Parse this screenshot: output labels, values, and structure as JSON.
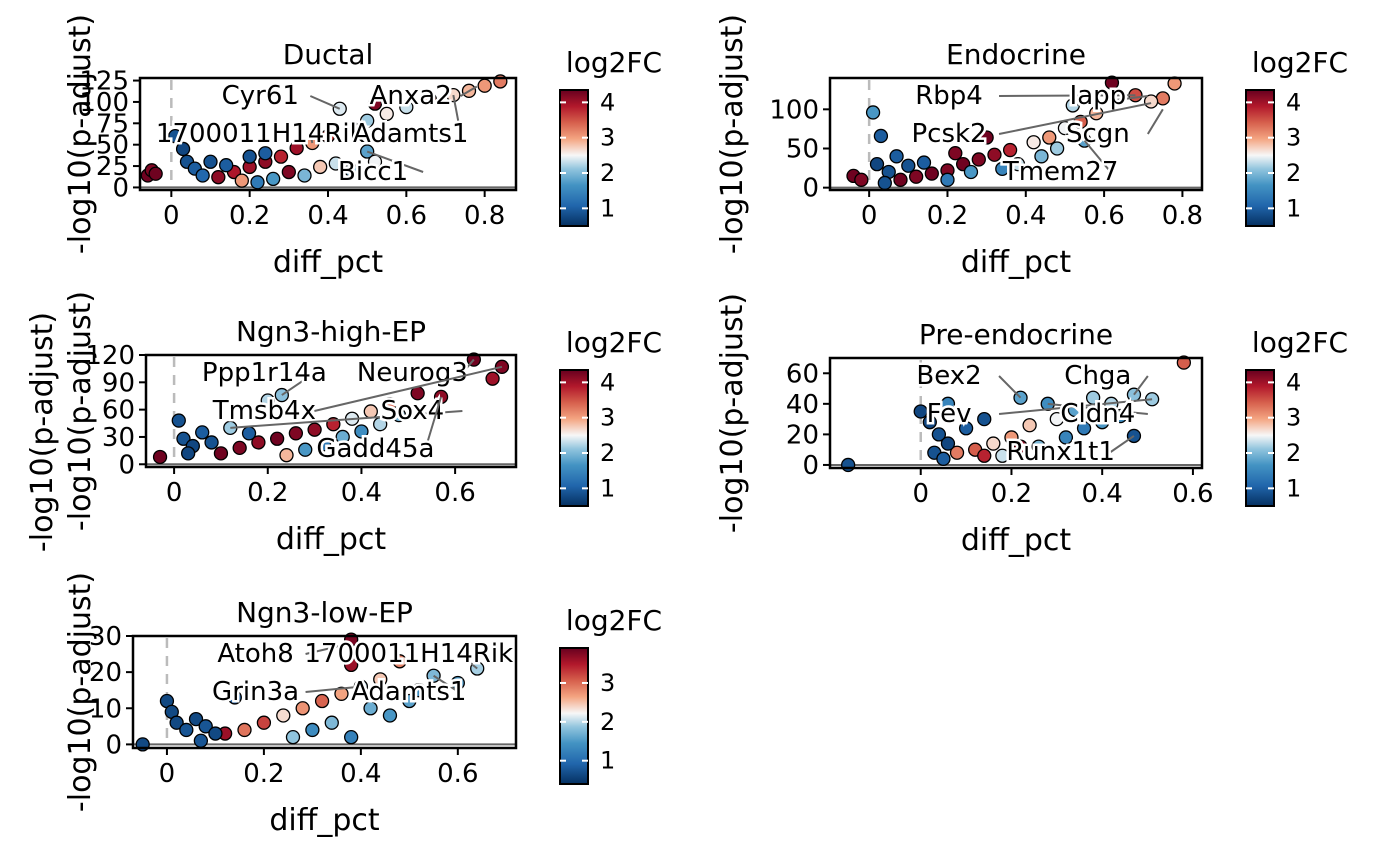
{
  "chart_data": [
    {
      "type": "scatter",
      "title": "Ductal",
      "xlabel": "diff_pct",
      "ylabel": "-log10(p-adjust)",
      "xlim": [
        -0.08,
        0.88
      ],
      "ylim": [
        -3,
        128
      ],
      "xticks": [
        0.0,
        0.2,
        0.4,
        0.6,
        0.8
      ],
      "yticks": [
        0,
        25,
        50,
        75,
        100,
        125
      ],
      "color_by": "log2FC",
      "legend": {
        "title": "log2FC",
        "min": 0.5,
        "max": 4.35,
        "ticks": [
          1,
          2,
          3,
          4
        ]
      },
      "labels": [
        {
          "text": "Cyr61",
          "x": 0.43,
          "y": 92
        },
        {
          "text": "Anxa2",
          "x": 0.78,
          "y": 118
        },
        {
          "text": "1700011H14Rik",
          "x": 0.36,
          "y": 52
        },
        {
          "text": "Adamts1",
          "x": 0.72,
          "y": 108
        },
        {
          "text": "Bicc1",
          "x": 0.5,
          "y": 42
        }
      ],
      "points": [
        {
          "x": 0.84,
          "y": 124,
          "fc": 3.2
        },
        {
          "x": 0.8,
          "y": 119,
          "fc": 3.0
        },
        {
          "x": 0.76,
          "y": 113,
          "fc": 2.8
        },
        {
          "x": 0.72,
          "y": 108,
          "fc": 2.6
        },
        {
          "x": 0.66,
          "y": 103,
          "fc": 3.4
        },
        {
          "x": 0.6,
          "y": 94,
          "fc": 2.2
        },
        {
          "x": 0.52,
          "y": 98,
          "fc": 4.2
        },
        {
          "x": 0.55,
          "y": 86,
          "fc": 2.5
        },
        {
          "x": 0.5,
          "y": 78,
          "fc": 2.0
        },
        {
          "x": 0.43,
          "y": 92,
          "fc": 2.3
        },
        {
          "x": 0.46,
          "y": 70,
          "fc": 2.9
        },
        {
          "x": 0.4,
          "y": 60,
          "fc": 3.6
        },
        {
          "x": 0.5,
          "y": 42,
          "fc": 1.6
        },
        {
          "x": 0.36,
          "y": 52,
          "fc": 3.0
        },
        {
          "x": 0.32,
          "y": 46,
          "fc": 4.0
        },
        {
          "x": 0.28,
          "y": 36,
          "fc": 3.8
        },
        {
          "x": 0.24,
          "y": 30,
          "fc": 4.1
        },
        {
          "x": 0.2,
          "y": 24,
          "fc": 4.0
        },
        {
          "x": 0.16,
          "y": 18,
          "fc": 3.9
        },
        {
          "x": 0.12,
          "y": 12,
          "fc": 4.1
        },
        {
          "x": 0.3,
          "y": 18,
          "fc": 4.2
        },
        {
          "x": 0.38,
          "y": 24,
          "fc": 2.7
        },
        {
          "x": 0.42,
          "y": 28,
          "fc": 2.2
        },
        {
          "x": 0.34,
          "y": 14,
          "fc": 1.8
        },
        {
          "x": 0.26,
          "y": 10,
          "fc": 1.5
        },
        {
          "x": 0.22,
          "y": 6,
          "fc": 1.2
        },
        {
          "x": 0.18,
          "y": 8,
          "fc": 3.0
        },
        {
          "x": 0.46,
          "y": 20,
          "fc": 1.9
        },
        {
          "x": 0.52,
          "y": 30,
          "fc": 2.4
        },
        {
          "x": 0.04,
          "y": 30,
          "fc": 0.8
        },
        {
          "x": 0.06,
          "y": 22,
          "fc": 0.9
        },
        {
          "x": 0.1,
          "y": 30,
          "fc": 0.8
        },
        {
          "x": 0.03,
          "y": 45,
          "fc": 0.7
        },
        {
          "x": 0.01,
          "y": 60,
          "fc": 0.8
        },
        {
          "x": 0.08,
          "y": 14,
          "fc": 1.0
        },
        {
          "x": -0.06,
          "y": 14,
          "fc": 4.3
        },
        {
          "x": -0.05,
          "y": 20,
          "fc": 4.2
        },
        {
          "x": -0.04,
          "y": 16,
          "fc": 4.3
        },
        {
          "x": 0.14,
          "y": 26,
          "fc": 0.9
        },
        {
          "x": 0.24,
          "y": 40,
          "fc": 0.9
        },
        {
          "x": 0.2,
          "y": 36,
          "fc": 0.8
        }
      ]
    },
    {
      "type": "scatter",
      "title": "Endocrine",
      "xlabel": "diff_pct",
      "ylabel": "-log10(p-adjust)",
      "xlim": [
        -0.1,
        0.85
      ],
      "ylim": [
        -3,
        140
      ],
      "xticks": [
        0.0,
        0.2,
        0.4,
        0.6,
        0.8
      ],
      "yticks": [
        0,
        50,
        100
      ],
      "color_by": "log2FC",
      "legend": {
        "title": "log2FC",
        "min": 0.5,
        "max": 4.35,
        "ticks": [
          1,
          2,
          3,
          4
        ]
      },
      "labels": [
        {
          "text": "Rbp4",
          "x": 0.68,
          "y": 118
        },
        {
          "text": "Iapp",
          "x": 0.52,
          "y": 105
        },
        {
          "text": "Pcsk2",
          "x": 0.72,
          "y": 108
        },
        {
          "text": "Scgn",
          "x": 0.75,
          "y": 100
        },
        {
          "text": "Tmem27",
          "x": 0.55,
          "y": 60
        }
      ],
      "points": [
        {
          "x": 0.78,
          "y": 133,
          "fc": 3.0
        },
        {
          "x": 0.75,
          "y": 114,
          "fc": 3.2
        },
        {
          "x": 0.72,
          "y": 110,
          "fc": 2.6
        },
        {
          "x": 0.68,
          "y": 118,
          "fc": 3.5
        },
        {
          "x": 0.62,
          "y": 134,
          "fc": 4.3
        },
        {
          "x": 0.52,
          "y": 105,
          "fc": 2.1
        },
        {
          "x": 0.58,
          "y": 95,
          "fc": 2.8
        },
        {
          "x": 0.54,
          "y": 84,
          "fc": 3.4
        },
        {
          "x": 0.5,
          "y": 76,
          "fc": 2.4
        },
        {
          "x": 0.55,
          "y": 60,
          "fc": 1.6
        },
        {
          "x": 0.46,
          "y": 64,
          "fc": 3.0
        },
        {
          "x": 0.42,
          "y": 58,
          "fc": 2.5
        },
        {
          "x": 0.36,
          "y": 48,
          "fc": 3.8
        },
        {
          "x": 0.32,
          "y": 42,
          "fc": 4.1
        },
        {
          "x": 0.28,
          "y": 36,
          "fc": 4.2
        },
        {
          "x": 0.24,
          "y": 30,
          "fc": 4.3
        },
        {
          "x": 0.2,
          "y": 22,
          "fc": 4.2
        },
        {
          "x": 0.16,
          "y": 18,
          "fc": 4.3
        },
        {
          "x": 0.12,
          "y": 14,
          "fc": 4.2
        },
        {
          "x": 0.08,
          "y": 10,
          "fc": 4.3
        },
        {
          "x": 0.3,
          "y": 64,
          "fc": 4.3
        },
        {
          "x": 0.38,
          "y": 30,
          "fc": 2.2
        },
        {
          "x": 0.44,
          "y": 40,
          "fc": 1.8
        },
        {
          "x": 0.26,
          "y": 20,
          "fc": 1.5
        },
        {
          "x": 0.34,
          "y": 24,
          "fc": 1.3
        },
        {
          "x": 0.2,
          "y": 10,
          "fc": 1.2
        },
        {
          "x": 0.48,
          "y": 50,
          "fc": 2.0
        },
        {
          "x": 0.01,
          "y": 96,
          "fc": 1.5
        },
        {
          "x": 0.03,
          "y": 66,
          "fc": 0.9
        },
        {
          "x": 0.02,
          "y": 30,
          "fc": 0.7
        },
        {
          "x": 0.05,
          "y": 20,
          "fc": 0.8
        },
        {
          "x": 0.1,
          "y": 28,
          "fc": 0.8
        },
        {
          "x": 0.07,
          "y": 40,
          "fc": 0.9
        },
        {
          "x": -0.04,
          "y": 15,
          "fc": 4.3
        },
        {
          "x": -0.02,
          "y": 10,
          "fc": 4.2
        },
        {
          "x": 0.04,
          "y": 6,
          "fc": 0.8
        },
        {
          "x": 0.14,
          "y": 32,
          "fc": 0.9
        },
        {
          "x": 0.22,
          "y": 44,
          "fc": 4.2
        }
      ]
    },
    {
      "type": "scatter",
      "title": "Ngn3-high-EP",
      "xlabel": "diff_pct",
      "ylabel": "-log10(p-adjust)",
      "xlim": [
        -0.06,
        0.73
      ],
      "ylim": [
        -3,
        120
      ],
      "xticks": [
        0.0,
        0.2,
        0.4,
        0.6
      ],
      "yticks": [
        0,
        30,
        60,
        90,
        120
      ],
      "color_by": "log2FC",
      "legend": {
        "title": "log2FC",
        "min": 0.5,
        "max": 4.35,
        "ticks": [
          1,
          2,
          3,
          4
        ]
      },
      "labels": [
        {
          "text": "Ppp1r14a",
          "x": 0.23,
          "y": 76
        },
        {
          "text": "Neurog3",
          "x": 0.64,
          "y": 115
        },
        {
          "text": "Tmsb4x",
          "x": 0.7,
          "y": 107
        },
        {
          "text": "Sox4",
          "x": 0.12,
          "y": 40
        },
        {
          "text": "Gadd45a",
          "x": 0.57,
          "y": 74
        }
      ],
      "points": [
        {
          "x": 0.7,
          "y": 107,
          "fc": 4.2
        },
        {
          "x": 0.68,
          "y": 94,
          "fc": 4.0
        },
        {
          "x": 0.64,
          "y": 115,
          "fc": 4.3
        },
        {
          "x": 0.57,
          "y": 74,
          "fc": 4.1
        },
        {
          "x": 0.52,
          "y": 78,
          "fc": 4.2
        },
        {
          "x": 0.46,
          "y": 66,
          "fc": 3.3
        },
        {
          "x": 0.42,
          "y": 58,
          "fc": 2.7
        },
        {
          "x": 0.38,
          "y": 50,
          "fc": 2.3
        },
        {
          "x": 0.34,
          "y": 44,
          "fc": 3.8
        },
        {
          "x": 0.3,
          "y": 38,
          "fc": 4.1
        },
        {
          "x": 0.26,
          "y": 34,
          "fc": 4.2
        },
        {
          "x": 0.22,
          "y": 28,
          "fc": 4.3
        },
        {
          "x": 0.18,
          "y": 24,
          "fc": 4.1
        },
        {
          "x": 0.14,
          "y": 18,
          "fc": 4.2
        },
        {
          "x": 0.1,
          "y": 12,
          "fc": 4.3
        },
        {
          "x": 0.23,
          "y": 76,
          "fc": 1.9
        },
        {
          "x": 0.2,
          "y": 70,
          "fc": 2.1
        },
        {
          "x": 0.12,
          "y": 40,
          "fc": 2.0
        },
        {
          "x": 0.36,
          "y": 30,
          "fc": 1.7
        },
        {
          "x": 0.4,
          "y": 36,
          "fc": 1.4
        },
        {
          "x": 0.32,
          "y": 22,
          "fc": 1.2
        },
        {
          "x": 0.28,
          "y": 16,
          "fc": 1.5
        },
        {
          "x": 0.24,
          "y": 10,
          "fc": 2.8
        },
        {
          "x": 0.44,
          "y": 44,
          "fc": 2.1
        },
        {
          "x": 0.02,
          "y": 28,
          "fc": 0.8
        },
        {
          "x": 0.04,
          "y": 20,
          "fc": 0.7
        },
        {
          "x": 0.06,
          "y": 35,
          "fc": 0.9
        },
        {
          "x": 0.01,
          "y": 48,
          "fc": 0.8
        },
        {
          "x": 0.08,
          "y": 24,
          "fc": 0.8
        },
        {
          "x": -0.03,
          "y": 8,
          "fc": 4.3
        },
        {
          "x": 0.03,
          "y": 12,
          "fc": 0.7
        },
        {
          "x": 0.16,
          "y": 34,
          "fc": 0.9
        },
        {
          "x": 0.48,
          "y": 54,
          "fc": 1.8
        }
      ]
    },
    {
      "type": "scatter",
      "title": "Pre-endocrine",
      "xlabel": "diff_pct",
      "ylabel": "-log10(p-adjust)",
      "xlim": [
        -0.2,
        0.62
      ],
      "ylim": [
        -2,
        70
      ],
      "xticks": [
        0.0,
        0.2,
        0.4,
        0.6
      ],
      "yticks": [
        0,
        20,
        40,
        60
      ],
      "color_by": "log2FC",
      "legend": {
        "title": "log2FC",
        "min": 0.5,
        "max": 4.35,
        "ticks": [
          1,
          2,
          3,
          4
        ]
      },
      "labels": [
        {
          "text": "Bex2",
          "x": 0.22,
          "y": 44
        },
        {
          "text": "Chga",
          "x": 0.47,
          "y": 46
        },
        {
          "text": "Fev",
          "x": 0.51,
          "y": 43
        },
        {
          "text": "Cldn4",
          "x": 0.28,
          "y": 40
        },
        {
          "text": "Runx1t1",
          "x": 0.47,
          "y": 19
        }
      ],
      "points": [
        {
          "x": 0.58,
          "y": 67,
          "fc": 3.4
        },
        {
          "x": 0.51,
          "y": 43,
          "fc": 2.0
        },
        {
          "x": 0.47,
          "y": 46,
          "fc": 1.9
        },
        {
          "x": 0.47,
          "y": 19,
          "fc": 0.8
        },
        {
          "x": 0.42,
          "y": 40,
          "fc": 2.1
        },
        {
          "x": 0.38,
          "y": 44,
          "fc": 2.0
        },
        {
          "x": 0.34,
          "y": 36,
          "fc": 1.6
        },
        {
          "x": 0.3,
          "y": 30,
          "fc": 2.4
        },
        {
          "x": 0.28,
          "y": 40,
          "fc": 1.4
        },
        {
          "x": 0.22,
          "y": 44,
          "fc": 1.6
        },
        {
          "x": 0.24,
          "y": 26,
          "fc": 2.7
        },
        {
          "x": 0.2,
          "y": 18,
          "fc": 3.0
        },
        {
          "x": 0.16,
          "y": 14,
          "fc": 2.6
        },
        {
          "x": 0.12,
          "y": 10,
          "fc": 3.4
        },
        {
          "x": 0.08,
          "y": 8,
          "fc": 3.2
        },
        {
          "x": 0.26,
          "y": 12,
          "fc": 1.8
        },
        {
          "x": 0.32,
          "y": 18,
          "fc": 1.3
        },
        {
          "x": 0.36,
          "y": 24,
          "fc": 1.2
        },
        {
          "x": 0.4,
          "y": 28,
          "fc": 1.5
        },
        {
          "x": 0.44,
          "y": 32,
          "fc": 1.4
        },
        {
          "x": 0.18,
          "y": 6,
          "fc": 2.2
        },
        {
          "x": -0.16,
          "y": 0,
          "fc": 0.8
        },
        {
          "x": 0.0,
          "y": 35,
          "fc": 0.7
        },
        {
          "x": 0.02,
          "y": 28,
          "fc": 0.7
        },
        {
          "x": 0.04,
          "y": 20,
          "fc": 0.8
        },
        {
          "x": 0.06,
          "y": 14,
          "fc": 0.7
        },
        {
          "x": 0.03,
          "y": 8,
          "fc": 0.8
        },
        {
          "x": 0.05,
          "y": 4,
          "fc": 0.9
        },
        {
          "x": 0.1,
          "y": 24,
          "fc": 0.9
        },
        {
          "x": 0.14,
          "y": 30,
          "fc": 0.8
        },
        {
          "x": 0.06,
          "y": 40,
          "fc": 1.3
        },
        {
          "x": 0.22,
          "y": 12,
          "fc": 4.1
        },
        {
          "x": 0.14,
          "y": 6,
          "fc": 3.8
        }
      ]
    },
    {
      "type": "scatter",
      "title": "Ngn3-low-EP",
      "xlabel": "diff_pct",
      "ylabel": "-log10(p-adjust)",
      "xlim": [
        -0.07,
        0.72
      ],
      "ylim": [
        -1,
        30
      ],
      "xticks": [
        0.0,
        0.2,
        0.4,
        0.6
      ],
      "yticks": [
        0,
        10,
        20,
        30
      ],
      "color_by": "log2FC",
      "legend": {
        "title": "log2FC",
        "min": 0.4,
        "max": 3.9,
        "ticks": [
          1,
          2,
          3
        ]
      },
      "labels": [
        {
          "text": "Atoh8",
          "x": 0.38,
          "y": 28
        },
        {
          "text": "1700011H14Rik",
          "x": 0.64,
          "y": 21
        },
        {
          "text": "Grin3a",
          "x": 0.4,
          "y": 16
        },
        {
          "text": "Adamts1",
          "x": 0.55,
          "y": 19
        }
      ],
      "points": [
        {
          "x": 0.38,
          "y": 29,
          "fc": 3.8
        },
        {
          "x": 0.38,
          "y": 22,
          "fc": 3.6
        },
        {
          "x": 0.64,
          "y": 21,
          "fc": 1.8
        },
        {
          "x": 0.55,
          "y": 19,
          "fc": 1.6
        },
        {
          "x": 0.48,
          "y": 23,
          "fc": 2.8
        },
        {
          "x": 0.44,
          "y": 18,
          "fc": 2.4
        },
        {
          "x": 0.4,
          "y": 16,
          "fc": 1.9
        },
        {
          "x": 0.36,
          "y": 14,
          "fc": 2.6
        },
        {
          "x": 0.32,
          "y": 12,
          "fc": 3.0
        },
        {
          "x": 0.28,
          "y": 10,
          "fc": 2.7
        },
        {
          "x": 0.24,
          "y": 8,
          "fc": 2.3
        },
        {
          "x": 0.2,
          "y": 6,
          "fc": 3.2
        },
        {
          "x": 0.16,
          "y": 4,
          "fc": 2.9
        },
        {
          "x": 0.12,
          "y": 3,
          "fc": 3.6
        },
        {
          "x": 0.42,
          "y": 10,
          "fc": 1.5
        },
        {
          "x": 0.46,
          "y": 8,
          "fc": 1.3
        },
        {
          "x": 0.5,
          "y": 12,
          "fc": 1.4
        },
        {
          "x": 0.34,
          "y": 6,
          "fc": 1.6
        },
        {
          "x": 0.3,
          "y": 4,
          "fc": 1.2
        },
        {
          "x": 0.26,
          "y": 2,
          "fc": 1.7
        },
        {
          "x": 0.52,
          "y": 15,
          "fc": 1.2
        },
        {
          "x": 0.14,
          "y": 13,
          "fc": 0.8
        },
        {
          "x": 0.0,
          "y": 12,
          "fc": 0.6
        },
        {
          "x": 0.01,
          "y": 9,
          "fc": 0.6
        },
        {
          "x": 0.02,
          "y": 6,
          "fc": 0.6
        },
        {
          "x": 0.04,
          "y": 4,
          "fc": 0.7
        },
        {
          "x": 0.06,
          "y": 7,
          "fc": 0.6
        },
        {
          "x": 0.08,
          "y": 5,
          "fc": 0.7
        },
        {
          "x": 0.1,
          "y": 3,
          "fc": 0.6
        },
        {
          "x": -0.05,
          "y": 0,
          "fc": 0.6
        },
        {
          "x": 0.07,
          "y": 1,
          "fc": 0.7
        },
        {
          "x": 0.6,
          "y": 17,
          "fc": 1.3
        },
        {
          "x": 0.38,
          "y": 2,
          "fc": 1.1
        }
      ]
    }
  ],
  "shared_ylabel": "-log10(p-adjust)",
  "colors": {
    "low": "#053061",
    "mid_low": "#4393c3",
    "mid": "#f7f7f7",
    "mid_high": "#f4a582",
    "high": "#67001f",
    "axis": "#000000",
    "vline": "#bbbbbb",
    "segment": "#666666"
  }
}
